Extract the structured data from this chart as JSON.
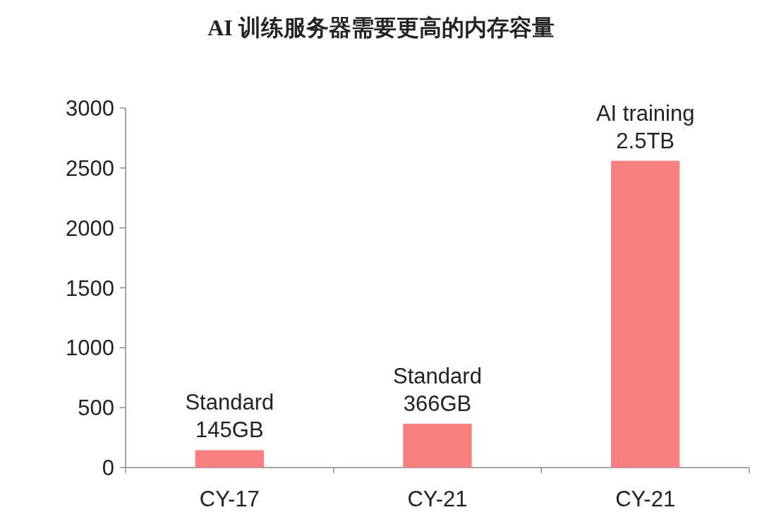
{
  "chart_data": {
    "type": "bar",
    "title": "AI 训练服务器需要更高的内存容量",
    "categories": [
      "CY-17",
      "CY-21",
      "CY-21"
    ],
    "values": [
      145,
      366,
      2560
    ],
    "value_labels": [
      "Standard\n145GB",
      "Standard\n366GB",
      "AI training\n2.5TB"
    ],
    "color": "#fa7f7f",
    "ylim": [
      0,
      3000
    ],
    "yticks": [
      0,
      500,
      1000,
      1500,
      2000,
      2500,
      3000
    ]
  }
}
